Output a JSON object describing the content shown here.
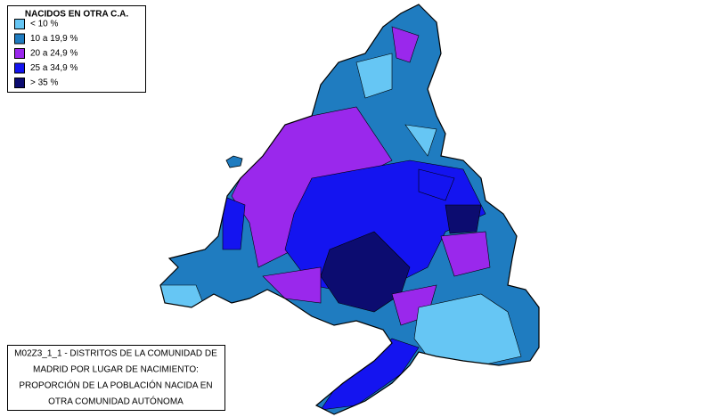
{
  "legend": {
    "title": "NACIDOS EN OTRA C.A.",
    "items": [
      {
        "label": "< 10 %",
        "color": "#66c6f4"
      },
      {
        "label": "10 a 19,9 %",
        "color": "#1f7cc0"
      },
      {
        "label": "20 a 24,9 %",
        "color": "#9a28ec"
      },
      {
        "label": "25 a 34,9 %",
        "color": "#1414f0"
      },
      {
        "label": "> 35 %",
        "color": "#0c0c70"
      }
    ]
  },
  "caption": {
    "lines": [
      "M02Z3_1_1 - DISTRITOS DE LA COMUNIDAD DE",
      "MADRID POR LUGAR DE NACIMIENTO:",
      "PROPORCIÓN DE LA POBLACIÓN NACIDA EN",
      "OTRA COMUNIDAD AUTÓNOMA"
    ]
  }
}
